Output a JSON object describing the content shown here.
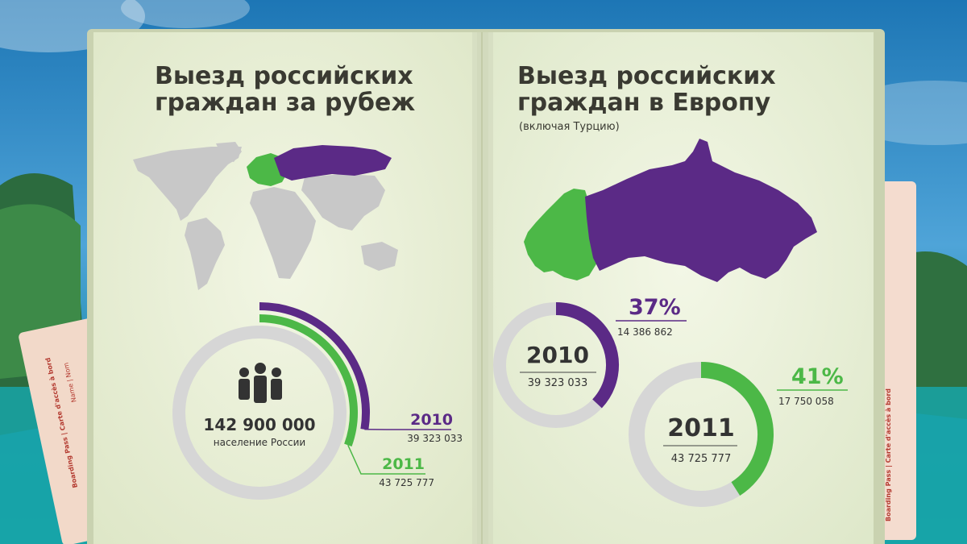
{
  "left_page": {
    "title_line1": "Выезд российских",
    "title_line2": "граждан за рубеж",
    "population_value": "142 900 000",
    "population_label": "население России"
  },
  "right_page": {
    "title_line1": "Выезд российских",
    "title_line2": "граждан в Европу",
    "subtitle": "(включая Турцию)"
  },
  "ticket": {
    "left_label": "Boarding Pass  |  Carte d'accès à bord",
    "left_name": "Name  |  Nom",
    "right_label": "Boarding Pass  |  Carte d'accès à bord"
  },
  "colors": {
    "russia": "#5b2a86",
    "europe": "#4cb847",
    "world": "#c8c8c8",
    "track": "#d6d6d6"
  },
  "icons": {
    "people": "people-icon"
  },
  "chart_data": [
    {
      "type": "radial-bar",
      "population": 142900000,
      "series": [
        {
          "name": "2010",
          "value": 39323033,
          "value_label": "39 323 033",
          "color": "#5b2a86"
        },
        {
          "name": "2011",
          "value": 43725777,
          "value_label": "43 725 777",
          "color": "#4cb847"
        }
      ]
    },
    {
      "type": "donut",
      "name": "2010",
      "total": 39323033,
      "total_label": "39 323 033",
      "part": 14386862,
      "part_label": "14 386 862",
      "percent": 37,
      "percent_label": "37%",
      "color": "#5b2a86"
    },
    {
      "type": "donut",
      "name": "2011",
      "total": 43725777,
      "total_label": "43 725 777",
      "part": 17750058,
      "part_label": "17 750 058",
      "percent": 41,
      "percent_label": "41%",
      "color": "#4cb847"
    }
  ]
}
